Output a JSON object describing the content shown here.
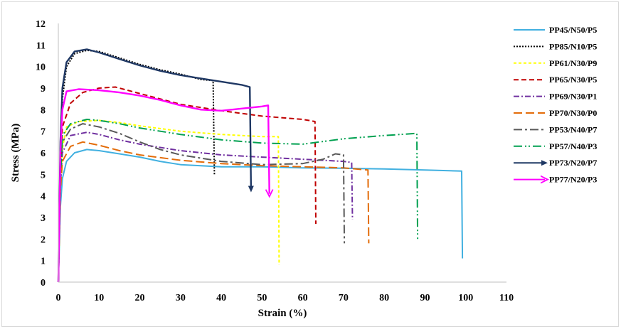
{
  "chart_data": {
    "type": "line",
    "title": "",
    "xlabel": "Strain (%)",
    "ylabel": "Stress (MPa)",
    "xlim": [
      0,
      110
    ],
    "ylim": [
      0,
      12
    ],
    "xticks": [
      "0",
      "10",
      "20",
      "30",
      "40",
      "50",
      "60",
      "70",
      "80",
      "90",
      "100",
      "110"
    ],
    "yticks": [
      "0",
      "1",
      "2",
      "3",
      "4",
      "5",
      "6",
      "7",
      "8",
      "9",
      "10",
      "11",
      "12"
    ],
    "grid": false,
    "legend_position": "right",
    "series": [
      {
        "name": "PP45/N50/P5",
        "color": "#41b0e0",
        "dash": "solid",
        "marker": "none",
        "points": [
          [
            0,
            0
          ],
          [
            0.5,
            3.5
          ],
          [
            1,
            4.8
          ],
          [
            2,
            5.6
          ],
          [
            4,
            6.0
          ],
          [
            7,
            6.15
          ],
          [
            10,
            6.1
          ],
          [
            15,
            5.95
          ],
          [
            20,
            5.8
          ],
          [
            25,
            5.6
          ],
          [
            30,
            5.45
          ],
          [
            35,
            5.4
          ],
          [
            40,
            5.35
          ],
          [
            50,
            5.35
          ],
          [
            60,
            5.3
          ],
          [
            70,
            5.28
          ],
          [
            80,
            5.25
          ],
          [
            90,
            5.2
          ],
          [
            99,
            5.15
          ],
          [
            99.2,
            1.1
          ]
        ]
      },
      {
        "name": "PP85/N10/P5",
        "color": "#000000",
        "dash": "2,2",
        "marker": "none",
        "points": [
          [
            0,
            0
          ],
          [
            0.5,
            6
          ],
          [
            1,
            8.5
          ],
          [
            2,
            10
          ],
          [
            4,
            10.6
          ],
          [
            7,
            10.75
          ],
          [
            10,
            10.7
          ],
          [
            15,
            10.4
          ],
          [
            20,
            10.1
          ],
          [
            25,
            9.85
          ],
          [
            30,
            9.65
          ],
          [
            35,
            9.4
          ],
          [
            38,
            9.35
          ],
          [
            38.3,
            5.0
          ]
        ]
      },
      {
        "name": "PP61/N30/P9",
        "color": "#ffff00",
        "dash": "4,3",
        "marker": "none",
        "points": [
          [
            0,
            0
          ],
          [
            0.5,
            4.5
          ],
          [
            1,
            6.2
          ],
          [
            2,
            7.2
          ],
          [
            5,
            7.45
          ],
          [
            10,
            7.5
          ],
          [
            15,
            7.4
          ],
          [
            20,
            7.25
          ],
          [
            30,
            7.0
          ],
          [
            40,
            6.85
          ],
          [
            50,
            6.75
          ],
          [
            54,
            6.75
          ],
          [
            54.2,
            0.8
          ]
        ]
      },
      {
        "name": "PP65/N30/P5",
        "color": "#c00000",
        "dash": "7,4",
        "marker": "none",
        "points": [
          [
            0,
            0
          ],
          [
            0.5,
            5
          ],
          [
            1,
            7.2
          ],
          [
            3,
            8.3
          ],
          [
            6,
            8.8
          ],
          [
            10,
            9.0
          ],
          [
            14,
            9.05
          ],
          [
            20,
            8.75
          ],
          [
            30,
            8.25
          ],
          [
            40,
            7.95
          ],
          [
            50,
            7.7
          ],
          [
            60,
            7.55
          ],
          [
            63,
            7.45
          ],
          [
            63.2,
            2.7
          ]
        ]
      },
      {
        "name": "PP69/N30/P1",
        "color": "#7030a0",
        "dash": "8,3,2,3",
        "marker": "none",
        "points": [
          [
            0,
            0
          ],
          [
            0.5,
            4.5
          ],
          [
            1,
            6.0
          ],
          [
            3,
            6.8
          ],
          [
            7,
            6.95
          ],
          [
            10,
            6.85
          ],
          [
            15,
            6.6
          ],
          [
            20,
            6.4
          ],
          [
            30,
            6.1
          ],
          [
            40,
            5.9
          ],
          [
            50,
            5.8
          ],
          [
            60,
            5.7
          ],
          [
            70,
            5.6
          ],
          [
            72,
            5.55
          ],
          [
            72.2,
            2.9
          ]
        ]
      },
      {
        "name": "PP70/N30/P0",
        "color": "#e36c09",
        "dash": "12,5",
        "marker": "none",
        "points": [
          [
            0,
            0
          ],
          [
            0.5,
            4.2
          ],
          [
            1,
            5.6
          ],
          [
            3,
            6.3
          ],
          [
            6,
            6.5
          ],
          [
            10,
            6.35
          ],
          [
            15,
            6.1
          ],
          [
            20,
            5.9
          ],
          [
            30,
            5.65
          ],
          [
            40,
            5.5
          ],
          [
            50,
            5.4
          ],
          [
            60,
            5.35
          ],
          [
            70,
            5.3
          ],
          [
            76,
            5.2
          ],
          [
            76.2,
            1.8
          ]
        ]
      },
      {
        "name": "PP53/N40/P7",
        "color": "#595959",
        "dash": "12,4,3,4",
        "marker": "none",
        "points": [
          [
            0,
            0
          ],
          [
            0.5,
            5
          ],
          [
            1,
            6.5
          ],
          [
            3,
            7.1
          ],
          [
            6,
            7.35
          ],
          [
            10,
            7.2
          ],
          [
            15,
            6.9
          ],
          [
            20,
            6.5
          ],
          [
            25,
            6.15
          ],
          [
            30,
            5.9
          ],
          [
            40,
            5.6
          ],
          [
            50,
            5.45
          ],
          [
            60,
            5.5
          ],
          [
            65,
            5.7
          ],
          [
            68,
            5.95
          ],
          [
            70,
            5.9
          ],
          [
            70.2,
            1.8
          ]
        ]
      },
      {
        "name": "PP57/N40/P3",
        "color": "#00a050",
        "dash": "12,4,2,3,2,4",
        "marker": "none",
        "points": [
          [
            0,
            0
          ],
          [
            0.5,
            5
          ],
          [
            1,
            6.8
          ],
          [
            3,
            7.35
          ],
          [
            7,
            7.55
          ],
          [
            10,
            7.5
          ],
          [
            15,
            7.35
          ],
          [
            20,
            7.15
          ],
          [
            30,
            6.85
          ],
          [
            40,
            6.6
          ],
          [
            50,
            6.45
          ],
          [
            60,
            6.4
          ],
          [
            70,
            6.65
          ],
          [
            80,
            6.8
          ],
          [
            88,
            6.9
          ],
          [
            88.2,
            2.0
          ]
        ]
      },
      {
        "name": "PP73/N20/P7",
        "color": "#1f3864",
        "dash": "solid",
        "marker": "arrow",
        "points": [
          [
            0,
            0
          ],
          [
            0.5,
            6.5
          ],
          [
            1,
            9
          ],
          [
            2,
            10.2
          ],
          [
            4,
            10.7
          ],
          [
            7,
            10.8
          ],
          [
            10,
            10.65
          ],
          [
            15,
            10.35
          ],
          [
            20,
            10.05
          ],
          [
            25,
            9.8
          ],
          [
            30,
            9.6
          ],
          [
            35,
            9.45
          ],
          [
            40,
            9.3
          ],
          [
            45,
            9.15
          ],
          [
            47,
            9.05
          ],
          [
            47.3,
            4.3
          ]
        ]
      },
      {
        "name": "PP77/N20/P3",
        "color": "#ff00ff",
        "dash": "solid",
        "marker": "arrow",
        "points": [
          [
            0,
            0
          ],
          [
            0.5,
            6
          ],
          [
            1,
            8
          ],
          [
            2,
            8.85
          ],
          [
            5,
            8.95
          ],
          [
            10,
            8.9
          ],
          [
            15,
            8.8
          ],
          [
            20,
            8.65
          ],
          [
            25,
            8.45
          ],
          [
            30,
            8.2
          ],
          [
            35,
            8.0
          ],
          [
            40,
            7.95
          ],
          [
            45,
            8.05
          ],
          [
            50,
            8.15
          ],
          [
            51.5,
            8.2
          ],
          [
            51.8,
            4.1
          ]
        ]
      }
    ]
  }
}
